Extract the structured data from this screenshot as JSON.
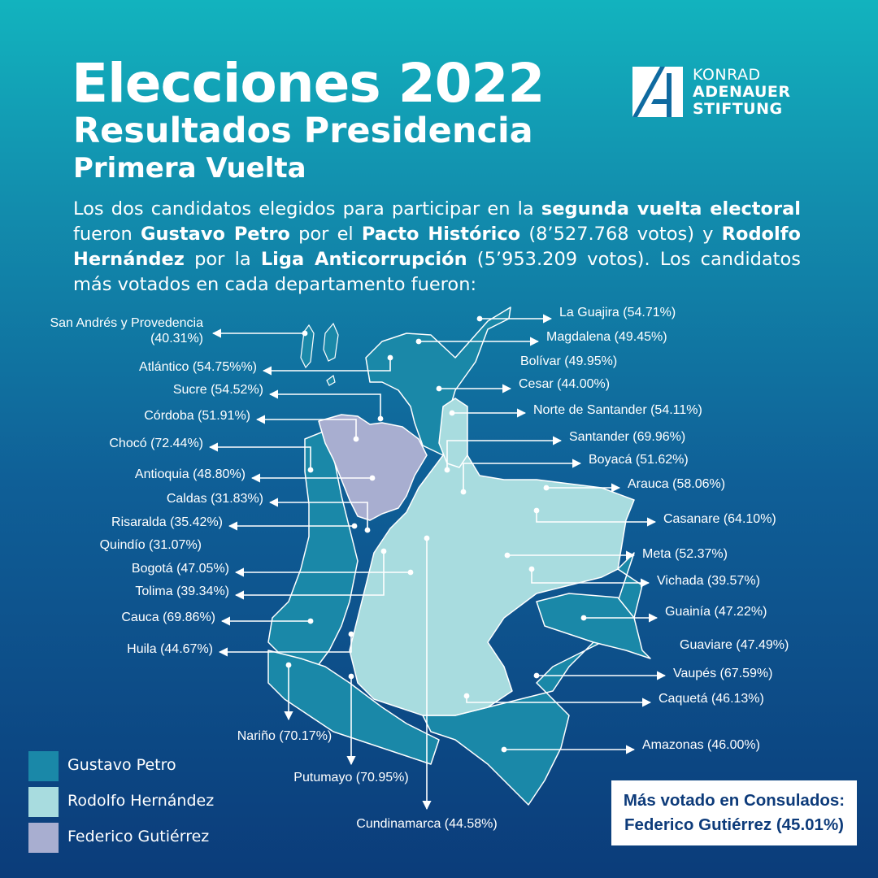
{
  "header": {
    "title": "Elecciones 2022",
    "subtitle": "Resultados Presidencia",
    "round": "Primera Vuelta"
  },
  "logo": {
    "line1": "KONRAD",
    "line2": "ADENAUER",
    "line3": "STIFTUNG"
  },
  "intro": {
    "t1": "Los dos candidatos elegidos para participar en la ",
    "b1": "segunda vuelta electoral",
    "t2": " fueron ",
    "b2": "Gustavo Petro",
    "t3": " por el ",
    "b3": "Pacto Histórico",
    "t4": " (8’527.768 votos) y ",
    "b4": "Rodolfo Hernández",
    "t5": " por la ",
    "b5": "Liga Anticorrupción",
    "t6": " (5’953.209 votos). Los candidatos más votados en cada departamento fueron:"
  },
  "legend": [
    {
      "label": "Gustavo Petro",
      "color": "#1a88a8"
    },
    {
      "label": "Rodolfo Hernández",
      "color": "#a8dcdf"
    },
    {
      "label": "Federico Gutiérrez",
      "color": "#a8aed0"
    }
  ],
  "departments": [
    {
      "name": "San Andrés y Provedencia",
      "result": "(40.31%)",
      "winner": "Gustavo Petro"
    },
    {
      "name": "La Guajira",
      "result": "(54.71%)",
      "winner": "Gustavo Petro"
    },
    {
      "name": "Magdalena",
      "result": "(49.45%)",
      "winner": "Gustavo Petro"
    },
    {
      "name": "Atlántico",
      "result": "(54.75%%)",
      "winner": "Gustavo Petro"
    },
    {
      "name": "Bolívar",
      "result": "(49.95%)",
      "winner": "Gustavo Petro"
    },
    {
      "name": "Sucre",
      "result": "(54.52%)",
      "winner": "Gustavo Petro"
    },
    {
      "name": "Cesar",
      "result": "(44.00%)",
      "winner": "Gustavo Petro"
    },
    {
      "name": "Córdoba",
      "result": "(51.91%)",
      "winner": "Gustavo Petro"
    },
    {
      "name": "Norte de Santander",
      "result": "(54.11%)",
      "winner": "Rodolfo Hernández"
    },
    {
      "name": "Chocó",
      "result": "(72.44%)",
      "winner": "Gustavo Petro"
    },
    {
      "name": "Santander",
      "result": "(69.96%)",
      "winner": "Rodolfo Hernández"
    },
    {
      "name": "Boyacá",
      "result": "(51.62%)",
      "winner": "Rodolfo Hernández"
    },
    {
      "name": "Antioquia",
      "result": "(48.80%)",
      "winner": "Federico Gutiérrez"
    },
    {
      "name": "Arauca",
      "result": "(58.06%)",
      "winner": "Rodolfo Hernández"
    },
    {
      "name": "Caldas",
      "result": "(31.83%)",
      "winner": "Rodolfo Hernández"
    },
    {
      "name": "Casanare",
      "result": "(64.10%)",
      "winner": "Rodolfo Hernández"
    },
    {
      "name": "Risaralda",
      "result": "(35.42%)",
      "winner": "Gustavo Petro"
    },
    {
      "name": "Quindío",
      "result": "(31.07%)",
      "winner": "Rodolfo Hernández"
    },
    {
      "name": "Meta",
      "result": "(52.37%)",
      "winner": "Rodolfo Hernández"
    },
    {
      "name": "Bogotá",
      "result": "(47.05%)",
      "winner": "Gustavo Petro"
    },
    {
      "name": "Vichada",
      "result": "(39.57%)",
      "winner": "Rodolfo Hernández"
    },
    {
      "name": "Tolima",
      "result": "(39.34%)",
      "winner": "Rodolfo Hernández"
    },
    {
      "name": "Guainía",
      "result": "(47.22%)",
      "winner": "Gustavo Petro"
    },
    {
      "name": "Cauca",
      "result": "(69.86%)",
      "winner": "Gustavo Petro"
    },
    {
      "name": "Guaviare",
      "result": "(47.49%)",
      "winner": "Rodolfo Hernández"
    },
    {
      "name": "Huila",
      "result": "(44.67%)",
      "winner": "Rodolfo Hernández"
    },
    {
      "name": "Vaupés",
      "result": "(67.59%)",
      "winner": "Gustavo Petro"
    },
    {
      "name": "Caquetá",
      "result": "(46.13%)",
      "winner": "Rodolfo Hernández"
    },
    {
      "name": "Nariño",
      "result": "(70.17%)",
      "winner": "Gustavo Petro"
    },
    {
      "name": "Amazonas",
      "result": "(46.00%)",
      "winner": "Gustavo Petro"
    },
    {
      "name": "Putumayo",
      "result": "(70.95%)",
      "winner": "Gustavo Petro"
    },
    {
      "name": "Cundinamarca",
      "result": "(44.58%)",
      "winner": "Rodolfo Hernández"
    }
  ],
  "consulates": {
    "line1": "Más votado en Consulados:",
    "line2": "Federico Gutiérrez (45.01%)"
  }
}
